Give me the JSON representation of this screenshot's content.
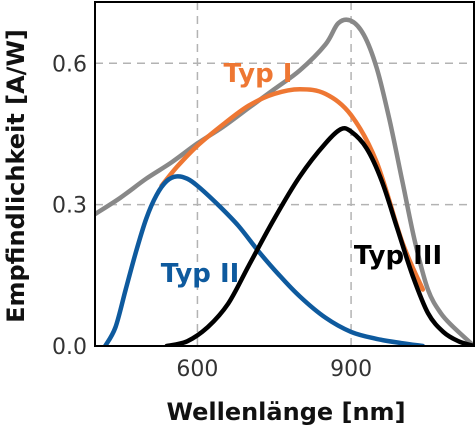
{
  "chart_data": {
    "type": "line",
    "title": "",
    "xlabel": "Wellenlänge [nm]",
    "ylabel": "Empfindlichkeit [A/W]",
    "xlim": [
      400,
      1140
    ],
    "ylim": [
      0,
      0.73
    ],
    "xticks": [
      600,
      900
    ],
    "xtick_labels": [
      "600",
      "900"
    ],
    "yticks": [
      0,
      0.3,
      0.6
    ],
    "ytick_labels": [
      "0.0",
      "0.3",
      "0.6"
    ],
    "grid": true,
    "legend": "none",
    "series": [
      {
        "name": "",
        "color": "#888888",
        "x": [
          400,
          450,
          500,
          550,
          600,
          650,
          700,
          750,
          800,
          850,
          875,
          900,
          925,
          950,
          975,
          1000,
          1025,
          1050,
          1075,
          1100,
          1140
        ],
        "y": [
          0.28,
          0.315,
          0.355,
          0.39,
          0.43,
          0.465,
          0.505,
          0.545,
          0.585,
          0.64,
          0.685,
          0.69,
          0.66,
          0.59,
          0.48,
          0.35,
          0.22,
          0.12,
          0.07,
          0.04,
          0.0
        ]
      },
      {
        "name": "Typ I",
        "color": "#ee7733",
        "x": [
          530,
          560,
          600,
          650,
          700,
          750,
          800,
          850,
          900,
          950,
          1000,
          1040
        ],
        "y": [
          0.34,
          0.38,
          0.425,
          0.47,
          0.51,
          0.535,
          0.545,
          0.535,
          0.49,
          0.39,
          0.22,
          0.12
        ]
      },
      {
        "name": "Typ II",
        "color": "#0e5a9e",
        "x": [
          420,
          440,
          460,
          480,
          500,
          520,
          540,
          560,
          580,
          600,
          640,
          680,
          720,
          760,
          800,
          850,
          900,
          950,
          1000,
          1040
        ],
        "y": [
          0.0,
          0.04,
          0.12,
          0.2,
          0.27,
          0.32,
          0.35,
          0.36,
          0.355,
          0.34,
          0.3,
          0.255,
          0.2,
          0.15,
          0.105,
          0.06,
          0.03,
          0.015,
          0.006,
          0.0
        ]
      },
      {
        "name": "Typ III",
        "color": "#000000",
        "x": [
          540,
          580,
          620,
          660,
          700,
          750,
          800,
          850,
          880,
          900,
          930,
          960,
          990,
          1020,
          1050,
          1080,
          1110,
          1140
        ],
        "y": [
          0.0,
          0.01,
          0.04,
          0.09,
          0.17,
          0.27,
          0.36,
          0.43,
          0.46,
          0.455,
          0.42,
          0.35,
          0.25,
          0.15,
          0.07,
          0.03,
          0.01,
          0.0
        ]
      }
    ]
  }
}
